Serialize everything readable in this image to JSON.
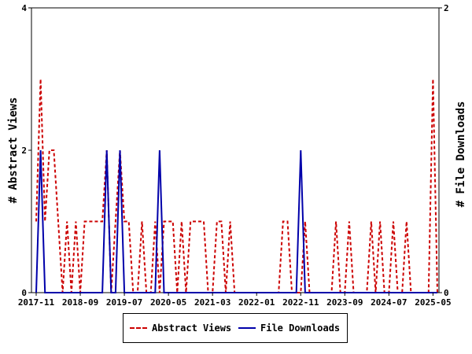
{
  "chart_data": {
    "type": "line",
    "x": [
      "2017-11",
      "2017-12",
      "2018-01",
      "2018-02",
      "2018-03",
      "2018-04",
      "2018-05",
      "2018-06",
      "2018-07",
      "2018-08",
      "2018-09",
      "2018-10",
      "2018-11",
      "2018-12",
      "2019-01",
      "2019-02",
      "2019-03",
      "2019-04",
      "2019-05",
      "2019-06",
      "2019-07",
      "2019-08",
      "2019-09",
      "2019-10",
      "2019-11",
      "2019-12",
      "2020-01",
      "2020-02",
      "2020-03",
      "2020-04",
      "2020-05",
      "2020-06",
      "2020-07",
      "2020-08",
      "2020-09",
      "2020-10",
      "2020-11",
      "2020-12",
      "2021-01",
      "2021-02",
      "2021-03",
      "2021-04",
      "2021-05",
      "2021-06",
      "2021-07",
      "2021-08",
      "2021-09",
      "2021-10",
      "2021-11",
      "2021-12",
      "2022-01",
      "2022-02",
      "2022-03",
      "2022-04",
      "2022-05",
      "2022-06",
      "2022-07",
      "2022-08",
      "2022-09",
      "2022-10",
      "2022-11",
      "2022-12",
      "2023-01",
      "2023-02",
      "2023-03",
      "2023-04",
      "2023-05",
      "2023-06",
      "2023-07",
      "2023-08",
      "2023-09",
      "2023-10",
      "2023-11",
      "2023-12",
      "2024-01",
      "2024-02",
      "2024-03",
      "2024-04",
      "2024-05",
      "2024-06",
      "2024-07",
      "2024-08",
      "2024-09",
      "2024-10",
      "2024-11",
      "2024-12",
      "2025-01",
      "2025-02",
      "2025-03",
      "2025-04",
      "2025-05",
      "2025-06"
    ],
    "x_tick_labels": [
      "2017-11",
      "2018-09",
      "2019-07",
      "2020-05",
      "2021-03",
      "2022-01",
      "2022-11",
      "2023-09",
      "2024-07",
      "2025-05"
    ],
    "series": [
      {
        "name": "Abstract Views",
        "axis": "left",
        "color": "#cc0000",
        "style": "dashed",
        "values": [
          1,
          3,
          1,
          2,
          2,
          1,
          0,
          1,
          0,
          1,
          0,
          1,
          1,
          1,
          1,
          1,
          2,
          0,
          1,
          2,
          1,
          1,
          0,
          0,
          1,
          0,
          0,
          1,
          0,
          1,
          1,
          1,
          0,
          1,
          0,
          1,
          1,
          1,
          1,
          0,
          0,
          1,
          1,
          0,
          1,
          0,
          0,
          0,
          0,
          0,
          0,
          0,
          0,
          0,
          0,
          0,
          1,
          1,
          0,
          0,
          0,
          1,
          0,
          0,
          0,
          0,
          0,
          0,
          1,
          0,
          0,
          1,
          0,
          0,
          0,
          0,
          1,
          0,
          1,
          0,
          0,
          1,
          0,
          0,
          1,
          0,
          0,
          0,
          0,
          0,
          3,
          0
        ]
      },
      {
        "name": "File Downloads",
        "axis": "right",
        "color": "#0000aa",
        "style": "solid",
        "values": [
          0,
          1,
          0,
          0,
          0,
          0,
          0,
          0,
          0,
          0,
          0,
          0,
          0,
          0,
          0,
          0,
          1,
          0,
          0,
          1,
          0,
          0,
          0,
          0,
          0,
          0,
          0,
          0,
          1,
          0,
          0,
          0,
          0,
          0,
          0,
          0,
          0,
          0,
          0,
          0,
          0,
          0,
          0,
          0,
          0,
          0,
          0,
          0,
          0,
          0,
          0,
          0,
          0,
          0,
          0,
          0,
          0,
          0,
          0,
          0,
          1,
          0,
          0,
          0,
          0,
          0,
          0,
          0,
          0,
          0,
          0,
          0,
          0,
          0,
          0,
          0,
          0,
          0,
          0,
          0,
          0,
          0,
          0,
          0,
          0,
          0,
          0,
          0,
          0,
          0,
          0,
          0
        ]
      }
    ],
    "ylabel": "# Abstract Views",
    "y2label": "# File Downloads",
    "ylim": [
      0,
      4
    ],
    "y_ticks": [
      0,
      2,
      4
    ],
    "y2lim": [
      0,
      2
    ],
    "y2_ticks": [
      0,
      2
    ],
    "grid": false,
    "legend_placement": "bottom"
  }
}
